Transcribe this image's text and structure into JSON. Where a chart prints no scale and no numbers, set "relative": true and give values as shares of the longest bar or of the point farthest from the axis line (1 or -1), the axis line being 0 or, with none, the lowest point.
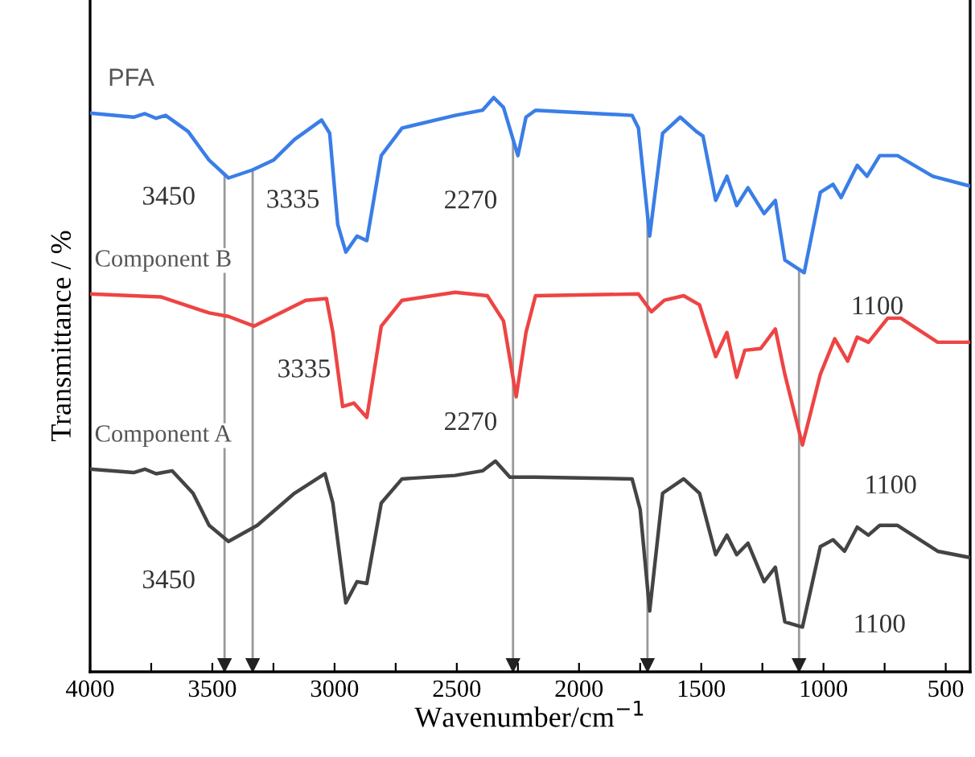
{
  "chart_data": {
    "type": "line",
    "relative": true,
    "xlabel": "Wavenumber/cm$^{−1}$",
    "ylabel": "Transmittance / %",
    "xlim": [
      4000,
      400
    ],
    "xticks": [
      4000,
      {
        "value": 3750,
        "label": null
      },
      3500,
      {
        "value": 3250,
        "label": null
      },
      3000,
      {
        "value": 2750,
        "label": null
      },
      2500,
      {
        "value": 2250,
        "label": null
      },
      2000,
      {
        "value": 1750,
        "label": null
      },
      1500,
      {
        "value": 1250,
        "label": null
      },
      1000,
      {
        "value": 750,
        "label": null
      },
      500
    ],
    "grid": false,
    "legend": false,
    "marker": "none",
    "line_style": "solid",
    "series": [
      {
        "name": "PFA",
        "color": "#3a7ee6",
        "x": [
          4000,
          3822,
          3776,
          3730,
          3691,
          3599,
          3513,
          3434,
          3336,
          3250,
          3164,
          3053,
          3020,
          2987,
          2954,
          2908,
          2868,
          2809,
          2724,
          2507,
          2395,
          2349,
          2309,
          2250,
          2217,
          2178,
          1783,
          1757,
          1711,
          1658,
          1586,
          1520,
          1493,
          1441,
          1395,
          1355,
          1309,
          1243,
          1197,
          1158,
          1079,
          1013,
          961,
          928,
          862,
          822,
          770,
          697,
          553,
          401
        ],
        "values": [
          0.973,
          0.966,
          0.972,
          0.964,
          0.969,
          0.941,
          0.891,
          0.86,
          0.874,
          0.891,
          0.927,
          0.961,
          0.938,
          0.779,
          0.731,
          0.759,
          0.751,
          0.899,
          0.947,
          0.969,
          0.978,
          1.0,
          0.983,
          0.899,
          0.966,
          0.978,
          0.969,
          0.947,
          0.759,
          0.938,
          0.966,
          0.941,
          0.933,
          0.821,
          0.863,
          0.812,
          0.843,
          0.798,
          0.821,
          0.717,
          0.695,
          0.835,
          0.849,
          0.826,
          0.882,
          0.863,
          0.899,
          0.899,
          0.863,
          0.846
        ]
      },
      {
        "name": "Component B",
        "color": "#ee4444",
        "x": [
          4000,
          3711,
          3513,
          3434,
          3329,
          3250,
          3118,
          3033,
          3007,
          2967,
          2921,
          2868,
          2809,
          2724,
          2507,
          2375,
          2309,
          2257,
          2217,
          2178,
          1757,
          1704,
          1651,
          1572,
          1507,
          1441,
          1395,
          1355,
          1322,
          1257,
          1197,
          1158,
          1086,
          1013,
          954,
          901,
          862,
          816,
          737,
          684,
          533,
          401
        ],
        "values": [
          0.658,
          0.653,
          0.625,
          0.619,
          0.602,
          0.619,
          0.647,
          0.65,
          0.591,
          0.462,
          0.468,
          0.443,
          0.602,
          0.647,
          0.661,
          0.655,
          0.611,
          0.479,
          0.591,
          0.655,
          0.658,
          0.627,
          0.647,
          0.655,
          0.639,
          0.549,
          0.591,
          0.513,
          0.56,
          0.563,
          0.597,
          0.518,
          0.395,
          0.518,
          0.58,
          0.541,
          0.583,
          0.574,
          0.616,
          0.616,
          0.574,
          0.574
        ]
      },
      {
        "name": "Component A",
        "color": "#444444",
        "x": [
          4000,
          3822,
          3776,
          3730,
          3664,
          3579,
          3513,
          3434,
          3316,
          3164,
          3039,
          3007,
          2954,
          2908,
          2868,
          2809,
          2724,
          2507,
          2395,
          2342,
          2283,
          2217,
          2178,
          1783,
          1750,
          1711,
          1658,
          1572,
          1507,
          1441,
          1395,
          1355,
          1309,
          1243,
          1197,
          1158,
          1086,
          1013,
          961,
          914,
          862,
          816,
          770,
          697,
          533,
          401
        ],
        "values": [
          0.353,
          0.347,
          0.353,
          0.345,
          0.35,
          0.311,
          0.255,
          0.227,
          0.255,
          0.311,
          0.345,
          0.294,
          0.12,
          0.157,
          0.154,
          0.294,
          0.336,
          0.342,
          0.35,
          0.367,
          0.339,
          0.339,
          0.339,
          0.336,
          0.283,
          0.106,
          0.311,
          0.336,
          0.311,
          0.204,
          0.238,
          0.204,
          0.224,
          0.157,
          0.182,
          0.087,
          0.078,
          0.218,
          0.23,
          0.21,
          0.252,
          0.238,
          0.255,
          0.255,
          0.21,
          0.199
        ]
      }
    ],
    "ref_lines": [
      {
        "axis": "x",
        "value": 3450,
        "color": "#999999"
      },
      {
        "axis": "x",
        "value": 3335,
        "color": "#999999"
      },
      {
        "axis": "x",
        "value": 2270,
        "color": "#999999"
      },
      {
        "axis": "x",
        "value": 1720,
        "color": "#999999"
      },
      {
        "axis": "x",
        "value": 1100,
        "color": "#999999"
      }
    ],
    "annotations": [
      {
        "text": "3450",
        "x": 3450,
        "y": 0.86
      },
      {
        "text": "3335",
        "x": 3335,
        "y": 0.874
      },
      {
        "text": "2270",
        "x": 2270,
        "y": 0.9
      },
      {
        "text": "3335",
        "x": 3335,
        "y": 0.602
      },
      {
        "text": "2270",
        "x": 2270,
        "y": 0.479
      },
      {
        "text": "1100",
        "x": 1100,
        "y": 0.7
      },
      {
        "text": "1100",
        "x": 1100,
        "y": 0.4
      },
      {
        "text": "3450",
        "x": 3450,
        "y": 0.227
      },
      {
        "text": "1100",
        "x": 1100,
        "y": 0.08
      }
    ]
  }
}
